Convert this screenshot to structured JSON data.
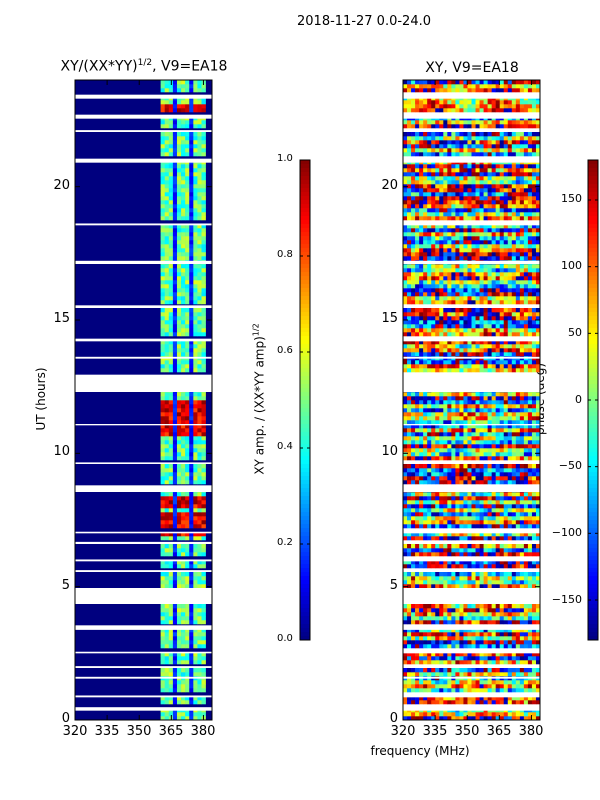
{
  "chart_data": {
    "suptitle": "2018-11-27 0.0-24.0",
    "shared_xlabel": "frequency (MHz)",
    "panels": [
      {
        "type": "heatmap",
        "title_main": "XY/(XX*YY)",
        "title_sup": "1/2",
        "title_suffix": ", V9=EA18",
        "ylabel": "UT (hours)",
        "xlim": [
          320,
          384
        ],
        "ylim": [
          0,
          24
        ],
        "xticks": [
          "320",
          "335",
          "350",
          "365",
          "380"
        ],
        "yticks": [
          "0",
          "5",
          "10",
          "15",
          "20"
        ],
        "colorbar": {
          "label_main": "XY amp. / (XX*YY amp)",
          "label_sup": "1/2",
          "range": [
            0.0,
            1.0
          ],
          "ticks": [
            "0.0",
            "0.2",
            "0.4",
            "0.6",
            "0.8",
            "1.0"
          ]
        }
      },
      {
        "type": "heatmap",
        "title": "XY, V9=EA18",
        "xlim": [
          320,
          384
        ],
        "ylim": [
          0,
          24
        ],
        "xticks": [
          "320",
          "335",
          "350",
          "365",
          "380"
        ],
        "yticks": [
          "0",
          "5",
          "10",
          "15",
          "20"
        ],
        "colorbar": {
          "label": "phase (deg)",
          "range": [
            -180,
            180
          ],
          "ticks": [
            "−150",
            "−100",
            "−50",
            "0",
            "50",
            "100",
            "150"
          ]
        }
      }
    ],
    "colormap": "jet",
    "gaps_ut_hours": [
      [
        0.35,
        0.48
      ],
      [
        0.85,
        0.92
      ],
      [
        1.55,
        1.62
      ],
      [
        1.95,
        2.02
      ],
      [
        2.5,
        2.56
      ],
      [
        3.38,
        3.55
      ],
      [
        4.35,
        4.95
      ],
      [
        5.55,
        5.62
      ],
      [
        5.95,
        6.02
      ],
      [
        6.6,
        6.68
      ],
      [
        7.0,
        7.06
      ],
      [
        8.55,
        8.8
      ],
      [
        9.6,
        9.66
      ],
      [
        11.05,
        11.1
      ],
      [
        12.3,
        12.95
      ],
      [
        13.55,
        13.62
      ],
      [
        14.2,
        14.3
      ],
      [
        15.45,
        15.55
      ],
      [
        17.1,
        17.22
      ],
      [
        18.55,
        18.62
      ],
      [
        20.9,
        21.05
      ],
      [
        22.05,
        22.12
      ],
      [
        22.55,
        22.7
      ],
      [
        23.3,
        23.45
      ]
    ]
  }
}
